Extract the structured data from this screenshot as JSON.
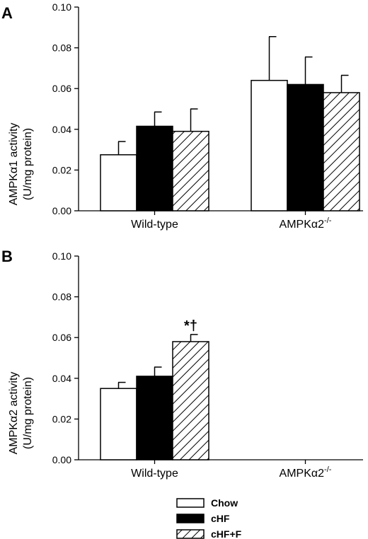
{
  "chart_data": [
    {
      "type": "bar",
      "panel_label": "A",
      "ylabel_line1": "AMPKα1 activity",
      "ylabel_line2": "(U/mg protein)",
      "categories": [
        {
          "name": "Wild-type",
          "sup": ""
        },
        {
          "name": "AMPKα2",
          "sup": "-/-"
        }
      ],
      "ylim": [
        0,
        0.1
      ],
      "yticks": [
        "0.00",
        "0.02",
        "0.04",
        "0.06",
        "0.08",
        "0.10"
      ],
      "series": [
        {
          "name": "Chow",
          "values": [
            0.0275,
            0.064
          ],
          "errors": [
            0.0065,
            0.0215
          ]
        },
        {
          "name": "cHF",
          "values": [
            0.0415,
            0.062
          ],
          "errors": [
            0.007,
            0.0135
          ]
        },
        {
          "name": "cHF+F",
          "values": [
            0.039,
            0.058
          ],
          "errors": [
            0.011,
            0.0085
          ]
        }
      ],
      "annotations": []
    },
    {
      "type": "bar",
      "panel_label": "B",
      "ylabel_line1": "AMPKα2 activity",
      "ylabel_line2": "(U/mg protein)",
      "categories": [
        {
          "name": "Wild-type",
          "sup": ""
        },
        {
          "name": "AMPKα2",
          "sup": "-/-"
        }
      ],
      "ylim": [
        0,
        0.1
      ],
      "yticks": [
        "0.00",
        "0.02",
        "0.04",
        "0.06",
        "0.08",
        "0.10"
      ],
      "series": [
        {
          "name": "Chow",
          "values": [
            0.035,
            null
          ],
          "errors": [
            0.003,
            null
          ]
        },
        {
          "name": "cHF",
          "values": [
            0.041,
            null
          ],
          "errors": [
            0.0045,
            null
          ]
        },
        {
          "name": "cHF+F",
          "values": [
            0.058,
            null
          ],
          "errors": [
            0.0035,
            null
          ]
        }
      ],
      "annotations": [
        {
          "text": "*†",
          "category": 0,
          "series": 2
        }
      ]
    }
  ],
  "legend": {
    "placement": "bottom-center",
    "items": [
      {
        "name": "Chow",
        "fill": "white"
      },
      {
        "name": "cHF",
        "fill": "black"
      },
      {
        "name": "cHF+F",
        "fill": "hatch"
      }
    ]
  },
  "colors": {
    "bar_stroke": "#000000",
    "solid": "#000000",
    "open": "#ffffff"
  }
}
